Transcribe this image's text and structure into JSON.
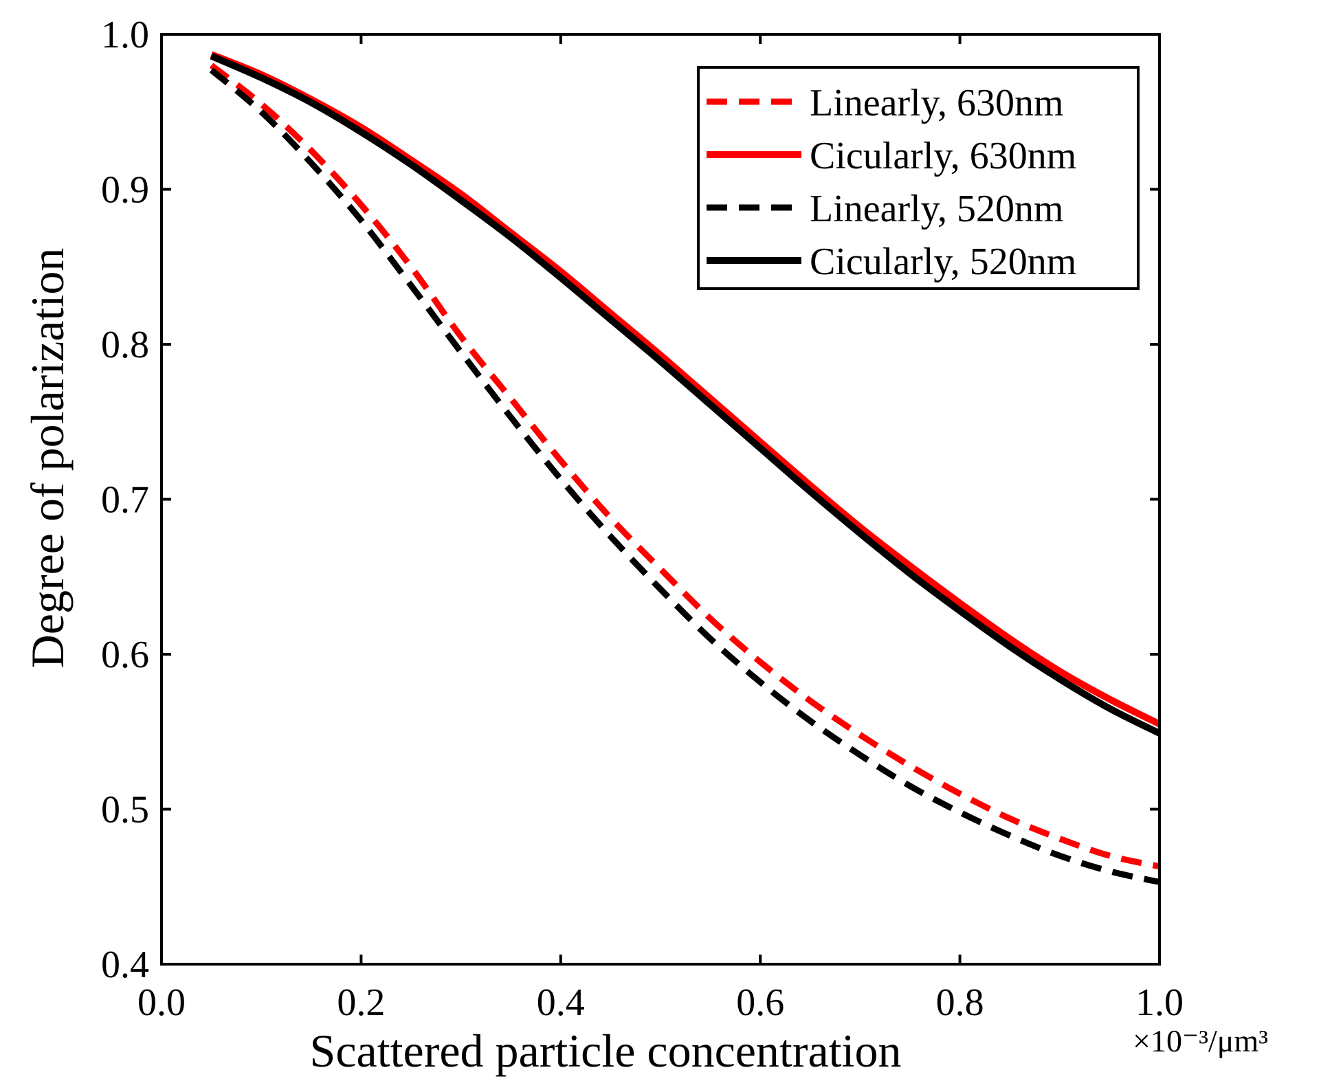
{
  "chart_data": {
    "type": "line",
    "title": "",
    "xlabel": "Scattered particle concentration",
    "x_unit": "×10⁻³/μm³",
    "ylabel": "Degree of polarization",
    "xlim": [
      0.0,
      1.0
    ],
    "ylim": [
      0.4,
      1.0
    ],
    "xticks": [
      "0.0",
      "0.2",
      "0.4",
      "0.6",
      "0.8",
      "1.0"
    ],
    "yticks": [
      "0.4",
      "0.5",
      "0.6",
      "0.7",
      "0.8",
      "0.9",
      "1.0"
    ],
    "grid": false,
    "legend_position": "top-right",
    "x": [
      0.05,
      0.1,
      0.15,
      0.2,
      0.25,
      0.3,
      0.35,
      0.4,
      0.45,
      0.5,
      0.55,
      0.6,
      0.65,
      0.7,
      0.75,
      0.8,
      0.85,
      0.9,
      0.95,
      1.0
    ],
    "series": [
      {
        "name": "Linearly, 630nm",
        "color": "#ff0000",
        "dash": "dashed",
        "values": [
          0.98,
          0.955,
          0.925,
          0.89,
          0.85,
          0.805,
          0.765,
          0.725,
          0.688,
          0.655,
          0.623,
          0.595,
          0.57,
          0.548,
          0.528,
          0.51,
          0.494,
          0.481,
          0.47,
          0.463
        ]
      },
      {
        "name": "Cicularly, 630nm",
        "color": "#ff0000",
        "dash": "solid",
        "values": [
          0.987,
          0.974,
          0.958,
          0.94,
          0.919,
          0.897,
          0.872,
          0.847,
          0.82,
          0.793,
          0.765,
          0.737,
          0.709,
          0.682,
          0.657,
          0.633,
          0.61,
          0.589,
          0.571,
          0.555
        ]
      },
      {
        "name": "Linearly, 520nm",
        "color": "#000000",
        "dash": "dashed",
        "values": [
          0.977,
          0.95,
          0.917,
          0.88,
          0.838,
          0.795,
          0.753,
          0.713,
          0.676,
          0.642,
          0.61,
          0.582,
          0.557,
          0.535,
          0.515,
          0.498,
          0.483,
          0.47,
          0.46,
          0.453
        ]
      },
      {
        "name": "Cicularly, 520nm",
        "color": "#000000",
        "dash": "solid",
        "values": [
          0.986,
          0.972,
          0.956,
          0.937,
          0.916,
          0.893,
          0.869,
          0.843,
          0.816,
          0.789,
          0.761,
          0.733,
          0.705,
          0.678,
          0.652,
          0.628,
          0.605,
          0.584,
          0.565,
          0.549
        ]
      }
    ]
  }
}
